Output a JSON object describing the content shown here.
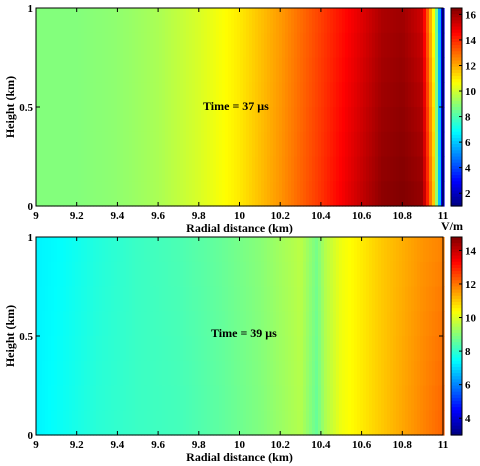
{
  "chart_data": [
    {
      "type": "heatmap",
      "xlabel": "Radial distance (km)",
      "ylabel": "Height (km)",
      "annotation": "Time = 37 μs",
      "xlim": [
        9,
        11
      ],
      "ylim": [
        0,
        1
      ],
      "x_ticks": [
        "9",
        "9.2",
        "9.4",
        "9.6",
        "9.8",
        "10",
        "10.2",
        "10.4",
        "10.6",
        "10.8",
        "11"
      ],
      "y_ticks": [
        "0",
        "0.5",
        "1"
      ],
      "colorbar": {
        "min": 1,
        "max": 16.5,
        "ticks": [
          "2",
          "4",
          "6",
          "8",
          "10",
          "12",
          "14",
          "16"
        ],
        "unit": "V/m"
      },
      "x": [
        9.0,
        9.2,
        9.4,
        9.6,
        9.8,
        10.0,
        10.2,
        10.4,
        10.6,
        10.7,
        10.8,
        10.9,
        10.96,
        11.0
      ],
      "field_ground": [
        8.8,
        8.8,
        9.0,
        9.4,
        10.1,
        11.0,
        12.3,
        13.8,
        15.5,
        16.3,
        16.5,
        16.2,
        11.0,
        2.0
      ],
      "field_top": [
        8.8,
        8.8,
        9.0,
        9.4,
        10.1,
        11.0,
        12.2,
        13.6,
        15.0,
        15.8,
        16.0,
        15.2,
        10.0,
        2.0
      ]
    },
    {
      "type": "heatmap",
      "xlabel": "Radial distance (km)",
      "ylabel": "Height (km)",
      "annotation": "Time = 39 μs",
      "xlim": [
        9,
        11
      ],
      "ylim": [
        0,
        1
      ],
      "x_ticks": [
        "9",
        "9.2",
        "9.4",
        "9.6",
        "9.8",
        "10",
        "10.2",
        "10.4",
        "10.6",
        "10.8",
        "11"
      ],
      "y_ticks": [
        "0",
        "0.5",
        "1"
      ],
      "colorbar": {
        "min": 3,
        "max": 14.8,
        "ticks": [
          "4",
          "6",
          "8",
          "10",
          "12",
          "14"
        ]
      },
      "x": [
        9.0,
        9.1,
        9.3,
        9.5,
        9.7,
        9.9,
        10.1,
        10.3,
        10.38,
        10.42,
        10.5,
        10.7,
        10.9,
        11.0
      ],
      "field_ground": [
        7.3,
        7.5,
        7.9,
        8.1,
        8.2,
        8.5,
        8.9,
        9.5,
        8.6,
        9.4,
        10.2,
        11.0,
        11.8,
        12.2
      ],
      "field_top": [
        7.3,
        7.4,
        7.8,
        8.1,
        8.3,
        8.6,
        9.0,
        9.6,
        8.8,
        9.5,
        10.2,
        11.0,
        11.6,
        11.8
      ]
    }
  ]
}
